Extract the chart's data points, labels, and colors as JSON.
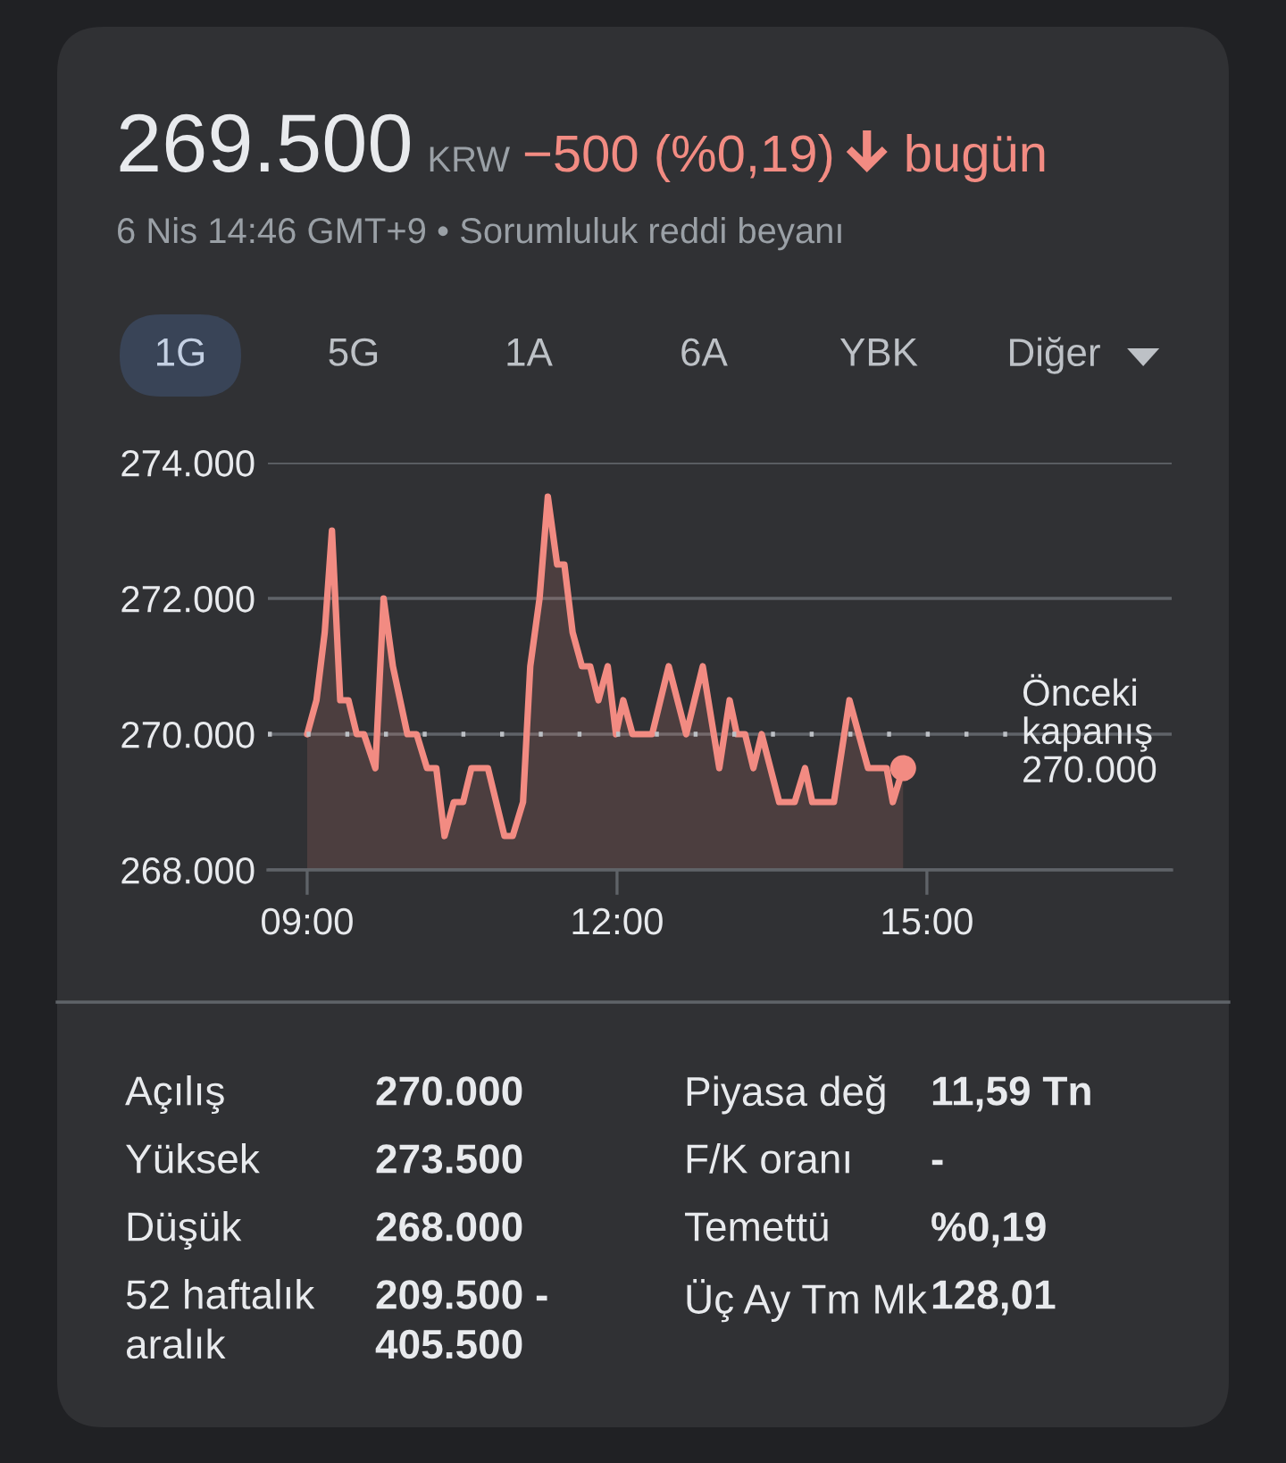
{
  "chart_data": [
    {
      "type": "area",
      "title": "269.500",
      "subtitle": "6 Nis 14:46 GMT+9 • Sorumluluk reddi beyanı",
      "annotations": [
        "KRW",
        "−500 (%0,19)",
        "bugün",
        "1G",
        "5G",
        "1A",
        "6A",
        "YBK",
        "Diğer"
      ],
      "x": [
        9.0,
        9.09,
        9.17,
        9.24,
        9.32,
        9.4,
        9.48,
        9.55,
        9.66,
        9.74,
        9.83,
        9.97,
        10.06,
        10.16,
        10.25,
        10.33,
        10.42,
        10.51,
        10.59,
        10.75,
        10.91,
        10.99,
        11.09,
        11.16,
        11.25,
        11.33,
        11.42,
        11.49,
        11.57,
        11.66,
        11.74,
        11.82,
        11.91,
        11.99,
        12.06,
        12.15,
        12.34,
        12.5,
        12.67,
        12.83,
        12.99,
        13.09,
        13.16,
        13.24,
        13.32,
        13.4,
        13.57,
        13.72,
        13.82,
        13.89,
        14.1,
        14.25,
        14.43,
        14.61,
        14.67,
        14.77
      ],
      "series": [
        {
          "color": "#f28b82",
          "values": [
            270000,
            270500,
            271500,
            273000,
            270500,
            270500,
            270000,
            270000,
            269500,
            272000,
            271000,
            270000,
            270000,
            269500,
            269500,
            268500,
            269000,
            269000,
            269500,
            269500,
            268500,
            268500,
            269000,
            271000,
            272000,
            273500,
            272500,
            272500,
            271500,
            271000,
            271000,
            270500,
            271000,
            270000,
            270500,
            270000,
            270000,
            271000,
            270000,
            271000,
            269500,
            270500,
            270000,
            270000,
            269500,
            270000,
            269000,
            269000,
            269500,
            269000,
            269000,
            270500,
            269500,
            269500,
            269000,
            269500
          ]
        },
        {
          "type": "scatter",
          "color": "#f28b82",
          "x": [
            14.77
          ],
          "values": [
            269500
          ]
        }
      ],
      "xlim": [
        8.62,
        17.37
      ],
      "xticks": [
        {
          "value": 9,
          "label": "09:00"
        },
        {
          "value": 12,
          "label": "12:00"
        },
        {
          "value": 15,
          "label": "15:00"
        }
      ],
      "ylim": [
        268000,
        274000
      ],
      "yticks": [
        {
          "value": 268000,
          "label": "268.000"
        },
        {
          "value": 270000,
          "label": "270.000"
        },
        {
          "value": 272000,
          "label": "272.000"
        },
        {
          "value": 274000,
          "label": "274.000"
        }
      ],
      "grid": "y",
      "ref_lines": [
        {
          "axis": "y",
          "value": 270000,
          "label": "Önceki\nkapanış\n270.000",
          "color": "#bdc1c6",
          "line_style": "dotted"
        }
      ]
    },
    {
      "type": "other",
      "annotations": [
        "Açılış",
        "270.000",
        "Piyasa değ",
        "11,59 Tn",
        "Yüksek",
        "273.500",
        "F/K oranı",
        "-",
        "Düşük",
        "268.000",
        "Temettü",
        "%0,19",
        "52 haftalık\naralık",
        "209.500 -\n405.500",
        "Üç Ay Tm Mk",
        "128,01"
      ]
    }
  ]
}
